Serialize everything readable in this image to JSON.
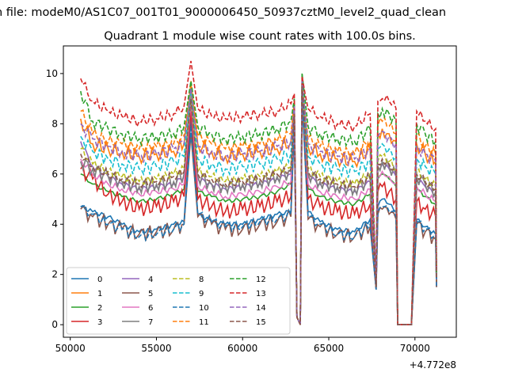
{
  "figure": {
    "suptitle": "n file: modeM0/AS1C07_001T01_9000006450_50937cztM0_level2_quad_clean",
    "title": "Quadrant 1 module wise count rates with 100.0s bins.",
    "offset_label": "+4.772e8"
  },
  "chart_data": {
    "type": "line",
    "title": "Quadrant 1 module wise count rates with 100.0s bins.",
    "xlabel": "",
    "ylabel": "",
    "x_offset": 477200000,
    "xlim": [
      49600,
      72400
    ],
    "ylim": [
      -0.5,
      11.1
    ],
    "xticks": [
      50000,
      55000,
      60000,
      65000,
      70000
    ],
    "xtick_labels": [
      "50000",
      "55000",
      "60000",
      "65000",
      "70000"
    ],
    "yticks": [
      0,
      2,
      4,
      6,
      8,
      10
    ],
    "ytick_labels": [
      "0",
      "2",
      "4",
      "6",
      "8",
      "10"
    ],
    "grid": false,
    "legend": {
      "position": "lower-left",
      "columns": 4
    },
    "x": [
      50600,
      51300,
      52200,
      53000,
      54000,
      55000,
      56000,
      56600,
      57000,
      57400,
      58200,
      59000,
      60000,
      61000,
      62000,
      62800,
      63000,
      63150,
      63350,
      63450,
      63800,
      64500,
      65500,
      66500,
      67400,
      67750,
      67850,
      68100,
      68500,
      68900,
      69000,
      69500,
      69800,
      70100,
      70600,
      71200,
      71250
    ],
    "series": [
      {
        "name": "0",
        "color": "#1f77b4",
        "dash": "solid",
        "values": [
          4.7,
          4.5,
          4.3,
          4.0,
          3.7,
          3.8,
          4.0,
          4.1,
          8.2,
          4.4,
          4.1,
          4.0,
          4.0,
          4.2,
          4.4,
          4.5,
          8.0,
          0.3,
          0.0,
          9.0,
          4.5,
          4.1,
          3.8,
          3.7,
          4.2,
          1.4,
          4.7,
          5.0,
          4.8,
          4.5,
          0.0,
          0.0,
          0.0,
          4.2,
          3.9,
          3.6,
          1.5
        ]
      },
      {
        "name": "1",
        "color": "#ff7f0e",
        "dash": "solid",
        "values": [
          8.2,
          7.2,
          7.0,
          6.9,
          6.7,
          6.8,
          6.9,
          7.2,
          9.6,
          7.2,
          6.9,
          6.7,
          6.8,
          6.9,
          7.0,
          7.3,
          8.8,
          0.3,
          0.0,
          9.5,
          7.1,
          6.8,
          6.6,
          6.5,
          7.0,
          1.6,
          7.6,
          7.8,
          7.6,
          7.3,
          0.0,
          0.0,
          0.0,
          7.2,
          6.8,
          6.5,
          1.8
        ]
      },
      {
        "name": "2",
        "color": "#2ca02c",
        "dash": "solid",
        "values": [
          6.0,
          5.6,
          5.3,
          5.1,
          4.9,
          5.0,
          5.2,
          5.4,
          8.8,
          5.3,
          5.1,
          4.9,
          5.0,
          5.1,
          5.3,
          5.6,
          8.3,
          0.3,
          0.0,
          10.0,
          5.4,
          5.1,
          4.9,
          4.8,
          5.2,
          1.5,
          5.8,
          6.0,
          5.8,
          5.5,
          0.0,
          0.0,
          0.0,
          5.4,
          5.1,
          4.8,
          1.6
        ]
      },
      {
        "name": "3",
        "color": "#d62728",
        "dash": "solid",
        "values": [
          6.2,
          5.8,
          5.2,
          4.9,
          4.6,
          4.7,
          4.9,
          5.1,
          8.5,
          5.0,
          4.7,
          4.5,
          4.6,
          4.7,
          4.9,
          5.1,
          8.1,
          0.3,
          0.0,
          9.4,
          5.0,
          4.7,
          4.5,
          4.4,
          4.8,
          1.5,
          5.3,
          5.5,
          5.3,
          5.0,
          0.0,
          0.0,
          0.0,
          4.9,
          4.6,
          4.3,
          1.6
        ]
      },
      {
        "name": "4",
        "color": "#9467bd",
        "dash": "solid",
        "values": [
          7.3,
          6.3,
          5.9,
          5.6,
          5.4,
          5.5,
          5.6,
          5.9,
          9.0,
          5.8,
          5.6,
          5.4,
          5.5,
          5.6,
          5.8,
          6.0,
          8.4,
          0.3,
          0.0,
          9.6,
          5.9,
          5.6,
          5.4,
          5.3,
          5.7,
          1.5,
          6.2,
          6.4,
          6.2,
          5.9,
          0.0,
          0.0,
          0.0,
          5.8,
          5.5,
          5.2,
          1.7
        ]
      },
      {
        "name": "5",
        "color": "#8c564b",
        "dash": "solid",
        "values": [
          4.6,
          4.3,
          4.0,
          3.8,
          3.6,
          3.7,
          3.8,
          4.0,
          7.6,
          4.3,
          4.0,
          3.8,
          3.8,
          4.0,
          4.1,
          4.3,
          8.0,
          0.3,
          0.0,
          9.0,
          4.2,
          3.9,
          3.6,
          3.5,
          3.9,
          1.4,
          4.4,
          4.6,
          4.4,
          4.2,
          0.0,
          0.0,
          0.0,
          4.0,
          3.7,
          3.4,
          1.5
        ]
      },
      {
        "name": "6",
        "color": "#e377c2",
        "dash": "solid",
        "values": [
          6.6,
          6.0,
          5.6,
          5.4,
          5.2,
          5.3,
          5.4,
          5.6,
          8.9,
          5.5,
          5.3,
          5.1,
          5.2,
          5.3,
          5.5,
          5.7,
          8.2,
          0.3,
          0.0,
          9.5,
          5.6,
          5.3,
          5.1,
          5.0,
          5.4,
          1.5,
          5.9,
          6.1,
          5.9,
          5.6,
          0.0,
          0.0,
          0.0,
          5.5,
          5.2,
          4.9,
          1.6
        ]
      },
      {
        "name": "7",
        "color": "#7f7f7f",
        "dash": "solid",
        "values": [
          6.5,
          6.2,
          5.9,
          5.7,
          5.5,
          5.6,
          5.7,
          6.0,
          9.1,
          5.9,
          5.6,
          5.5,
          5.6,
          5.7,
          5.9,
          6.1,
          8.5,
          0.3,
          0.0,
          9.6,
          6.0,
          5.7,
          5.5,
          5.4,
          5.8,
          1.5,
          6.3,
          6.5,
          6.3,
          6.0,
          0.0,
          0.0,
          0.0,
          5.9,
          5.6,
          5.3,
          1.7
        ]
      },
      {
        "name": "8",
        "color": "#bcbd22",
        "dash": "dashed",
        "values": [
          7.0,
          6.4,
          6.1,
          5.9,
          5.7,
          5.8,
          6.0,
          6.2,
          9.3,
          6.1,
          5.9,
          5.7,
          5.8,
          5.9,
          6.1,
          6.3,
          8.6,
          0.3,
          0.0,
          9.7,
          6.2,
          5.9,
          5.7,
          5.6,
          6.0,
          1.5,
          6.5,
          6.7,
          6.5,
          6.2,
          0.0,
          0.0,
          0.0,
          6.1,
          5.8,
          5.5,
          1.7
        ]
      },
      {
        "name": "9",
        "color": "#17becf",
        "dash": "dashed",
        "values": [
          7.5,
          6.9,
          6.6,
          6.4,
          6.2,
          6.3,
          6.5,
          6.7,
          9.4,
          6.6,
          6.4,
          6.2,
          6.3,
          6.4,
          6.6,
          6.8,
          8.7,
          0.3,
          0.0,
          9.8,
          6.7,
          6.4,
          6.2,
          6.1,
          6.5,
          1.6,
          7.0,
          7.2,
          7.0,
          6.7,
          0.0,
          0.0,
          0.0,
          6.6,
          6.3,
          6.0,
          1.8
        ]
      },
      {
        "name": "10",
        "color": "#1f77b4",
        "dash": "dashed",
        "values": [
          4.7,
          4.4,
          4.0,
          3.8,
          3.5,
          3.6,
          3.8,
          4.0,
          7.8,
          4.4,
          4.1,
          3.9,
          3.9,
          4.1,
          4.2,
          4.4,
          8.1,
          0.3,
          0.0,
          9.1,
          4.3,
          4.0,
          3.6,
          3.5,
          4.0,
          1.4,
          4.5,
          4.7,
          4.5,
          4.3,
          0.0,
          0.0,
          0.0,
          4.1,
          3.8,
          3.5,
          1.5
        ]
      },
      {
        "name": "11",
        "color": "#ff7f0e",
        "dash": "dashed",
        "values": [
          8.5,
          7.6,
          7.3,
          7.2,
          7.0,
          7.1,
          7.2,
          7.5,
          9.7,
          7.5,
          7.2,
          7.0,
          7.1,
          7.2,
          7.3,
          7.6,
          8.9,
          0.3,
          0.0,
          9.6,
          7.4,
          7.1,
          6.9,
          6.8,
          7.3,
          1.6,
          7.9,
          8.1,
          7.9,
          7.6,
          0.0,
          0.0,
          0.0,
          7.5,
          7.1,
          6.8,
          1.9
        ]
      },
      {
        "name": "12",
        "color": "#2ca02c",
        "dash": "dashed",
        "values": [
          9.3,
          8.1,
          7.8,
          7.6,
          7.4,
          7.5,
          7.6,
          7.9,
          9.7,
          7.9,
          7.6,
          7.4,
          7.5,
          7.6,
          7.8,
          8.1,
          9.0,
          0.3,
          0.0,
          10.0,
          7.9,
          7.6,
          7.4,
          7.3,
          7.8,
          1.6,
          8.4,
          8.6,
          8.4,
          8.1,
          0.0,
          0.0,
          0.0,
          8.0,
          7.6,
          7.3,
          2.0
        ]
      },
      {
        "name": "13",
        "color": "#d62728",
        "dash": "dashed",
        "values": [
          9.8,
          8.9,
          8.5,
          8.3,
          8.1,
          8.2,
          8.4,
          8.7,
          10.5,
          8.6,
          8.3,
          8.2,
          8.3,
          8.4,
          8.5,
          8.8,
          9.2,
          0.3,
          0.0,
          9.9,
          8.6,
          8.3,
          8.0,
          7.9,
          8.4,
          1.7,
          8.9,
          9.0,
          8.9,
          8.6,
          0.0,
          0.0,
          0.0,
          8.5,
          8.1,
          7.8,
          2.2
        ]
      },
      {
        "name": "14",
        "color": "#9467bd",
        "dash": "dashed",
        "values": [
          8.0,
          7.4,
          7.1,
          6.9,
          6.7,
          6.8,
          7.0,
          7.2,
          9.4,
          7.1,
          6.9,
          6.7,
          6.8,
          6.9,
          7.1,
          7.3,
          8.7,
          0.3,
          0.0,
          9.7,
          7.2,
          6.9,
          6.7,
          6.6,
          7.0,
          1.6,
          7.5,
          7.7,
          7.5,
          7.2,
          0.0,
          0.0,
          0.0,
          7.1,
          6.8,
          6.5,
          1.8
        ]
      },
      {
        "name": "15",
        "color": "#8c564b",
        "dash": "dashed",
        "values": [
          6.8,
          6.3,
          6.0,
          5.8,
          5.6,
          5.7,
          5.9,
          6.1,
          9.0,
          6.0,
          5.8,
          5.6,
          5.7,
          5.8,
          6.0,
          6.2,
          8.4,
          0.3,
          0.0,
          9.5,
          6.1,
          5.8,
          5.6,
          5.5,
          5.9,
          1.5,
          6.4,
          6.6,
          6.4,
          6.1,
          0.0,
          0.0,
          0.0,
          6.0,
          5.7,
          5.4,
          1.7
        ]
      }
    ]
  }
}
